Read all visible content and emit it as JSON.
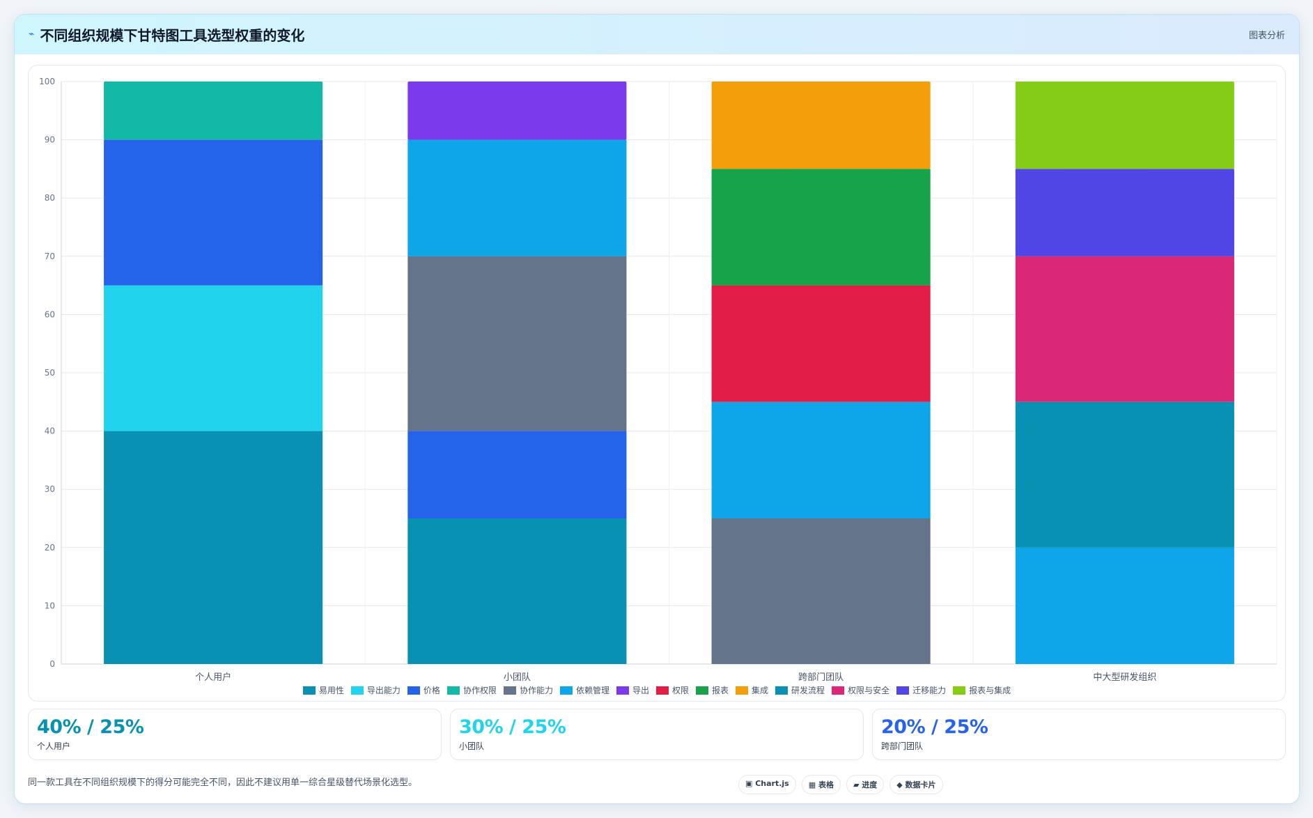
{
  "header": {
    "icon": "chart-icon",
    "title": "不同组织规模下甘特图工具选型权重的变化",
    "tag": "图表分析"
  },
  "chart_data": {
    "type": "bar",
    "stacked": true,
    "categories": [
      "个人用户",
      "小团队",
      "跨部门团队",
      "中大型研发组织"
    ],
    "ylim": [
      0,
      100
    ],
    "yticks": [
      "0",
      "10",
      "20",
      "30",
      "40",
      "50",
      "60",
      "70",
      "80",
      "90",
      "100"
    ],
    "grid": true,
    "legend_position": "bottom",
    "series": [
      {
        "name": "易用性",
        "color": "#0891b2",
        "values": [
          40,
          25,
          0,
          0
        ]
      },
      {
        "name": "导出能力",
        "color": "#22d3ee",
        "values": [
          25,
          0,
          0,
          0
        ]
      },
      {
        "name": "价格",
        "color": "#2563eb",
        "values": [
          25,
          15,
          0,
          0
        ]
      },
      {
        "name": "协作权限",
        "color": "#14b8a6",
        "values": [
          10,
          0,
          0,
          0
        ]
      },
      {
        "name": "协作能力",
        "color": "#64748b",
        "values": [
          0,
          30,
          25,
          0
        ]
      },
      {
        "name": "依赖管理",
        "color": "#0ea5e9",
        "values": [
          0,
          20,
          20,
          20
        ]
      },
      {
        "name": "导出",
        "color": "#7c3aed",
        "values": [
          0,
          10,
          0,
          0
        ]
      },
      {
        "name": "权限",
        "color": "#e11d48",
        "values": [
          0,
          0,
          20,
          0
        ]
      },
      {
        "name": "报表",
        "color": "#16a34a",
        "values": [
          0,
          0,
          20,
          0
        ]
      },
      {
        "name": "集成",
        "color": "#f59e0b",
        "values": [
          0,
          0,
          15,
          0
        ]
      },
      {
        "name": "研发流程",
        "color": "#0891b2",
        "values": [
          0,
          0,
          0,
          25
        ]
      },
      {
        "name": "权限与安全",
        "color": "#db2777",
        "values": [
          0,
          0,
          0,
          25
        ]
      },
      {
        "name": "迁移能力",
        "color": "#4f46e5",
        "values": [
          0,
          0,
          0,
          15
        ]
      },
      {
        "name": "报表与集成",
        "color": "#84cc16",
        "values": [
          0,
          0,
          0,
          15
        ]
      }
    ]
  },
  "stats": [
    {
      "value": "40% / 25%",
      "label": "个人用户",
      "color": "#0891b2"
    },
    {
      "value": "30% / 25%",
      "label": "小团队",
      "color": "#22d3ee"
    },
    {
      "value": "20% / 25%",
      "label": "跨部门团队",
      "color": "#2563eb"
    }
  ],
  "footer": {
    "note": "同一款工具在不同组织规模下的得分可能完全不同，因此不建议用单一综合星级替代场景化选型。",
    "tools": [
      {
        "icon": "chartjs-icon",
        "label": "▣ Chart.js"
      },
      {
        "icon": "table-icon",
        "label": "▦ 表格"
      },
      {
        "icon": "progress-icon",
        "label": "▰ 进度"
      },
      {
        "icon": "data-card-icon",
        "label": "◆ 数据卡片"
      }
    ]
  }
}
